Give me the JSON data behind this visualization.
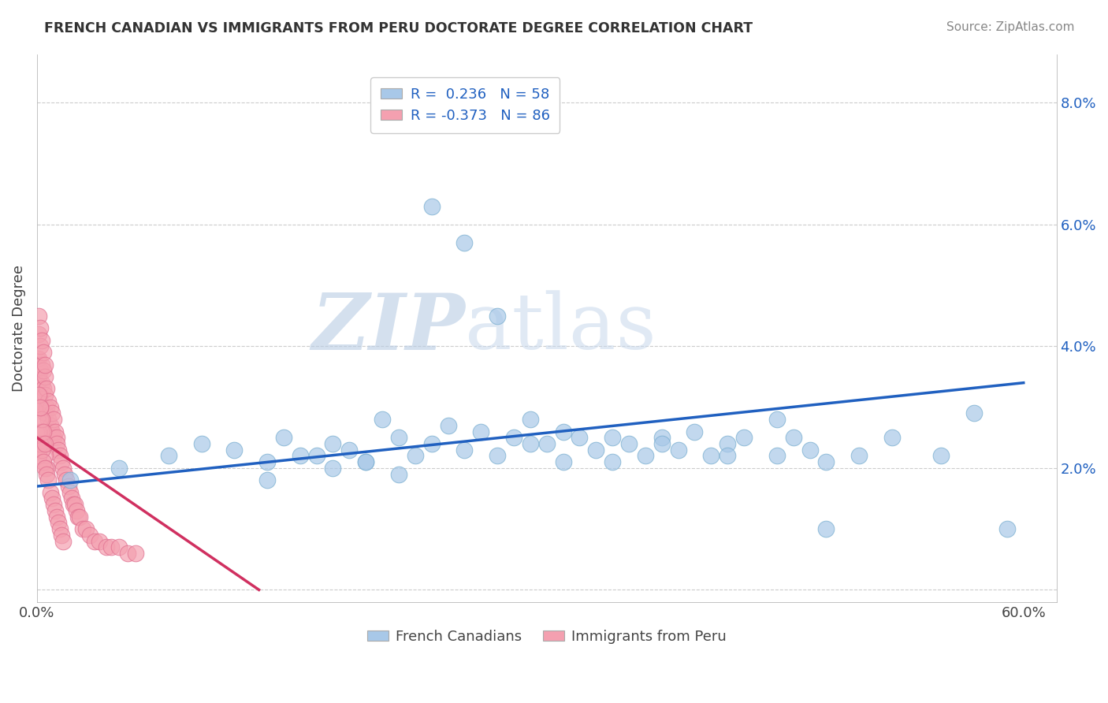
{
  "title": "FRENCH CANADIAN VS IMMIGRANTS FROM PERU DOCTORATE DEGREE CORRELATION CHART",
  "source": "Source: ZipAtlas.com",
  "ylabel": "Doctorate Degree",
  "xlim": [
    0.0,
    0.62
  ],
  "ylim": [
    -0.002,
    0.088
  ],
  "yticks": [
    0.0,
    0.02,
    0.04,
    0.06,
    0.08
  ],
  "ytick_labels": [
    "",
    "2.0%",
    "4.0%",
    "6.0%",
    "8.0%"
  ],
  "xticks": [
    0.0,
    0.1,
    0.2,
    0.3,
    0.4,
    0.5,
    0.6
  ],
  "xtick_labels": [
    "0.0%",
    "",
    "",
    "",
    "",
    "",
    "60.0%"
  ],
  "legend_line1": "R =  0.236   N = 58",
  "legend_line2": "R = -0.373   N = 86",
  "blue_color": "#a8c8e8",
  "pink_color": "#f4a0b0",
  "blue_edge_color": "#7aaed0",
  "pink_edge_color": "#e07090",
  "line_blue_color": "#2060c0",
  "line_pink_color": "#d03060",
  "legend_blue_color": "#a8c8e8",
  "legend_pink_color": "#f4a0b0",
  "legend_text_color": "#2060c0",
  "watermark_text": "ZIPatlas",
  "watermark_color": "#c8d8f0",
  "grid_color": "#cccccc",
  "background_color": "#ffffff",
  "blue_line_x0": 0.0,
  "blue_line_y0": 0.017,
  "blue_line_x1": 0.6,
  "blue_line_y1": 0.034,
  "pink_line_x0": 0.0,
  "pink_line_y0": 0.025,
  "pink_line_x1": 0.135,
  "pink_line_y1": 0.0,
  "blue_scatter_x": [
    0.02,
    0.05,
    0.08,
    0.1,
    0.12,
    0.14,
    0.15,
    0.17,
    0.18,
    0.19,
    0.2,
    0.21,
    0.22,
    0.23,
    0.24,
    0.25,
    0.26,
    0.27,
    0.28,
    0.29,
    0.3,
    0.31,
    0.32,
    0.33,
    0.34,
    0.35,
    0.36,
    0.37,
    0.38,
    0.39,
    0.4,
    0.41,
    0.42,
    0.43,
    0.45,
    0.46,
    0.47,
    0.48,
    0.5,
    0.52,
    0.55,
    0.57,
    0.59,
    0.24,
    0.26,
    0.28,
    0.22,
    0.2,
    0.18,
    0.16,
    0.14,
    0.3,
    0.32,
    0.35,
    0.38,
    0.42,
    0.45,
    0.48
  ],
  "blue_scatter_y": [
    0.018,
    0.02,
    0.022,
    0.024,
    0.023,
    0.021,
    0.025,
    0.022,
    0.024,
    0.023,
    0.021,
    0.028,
    0.025,
    0.022,
    0.024,
    0.027,
    0.023,
    0.026,
    0.022,
    0.025,
    0.028,
    0.024,
    0.026,
    0.025,
    0.023,
    0.021,
    0.024,
    0.022,
    0.025,
    0.023,
    0.026,
    0.022,
    0.024,
    0.025,
    0.022,
    0.025,
    0.023,
    0.01,
    0.022,
    0.025,
    0.022,
    0.029,
    0.01,
    0.063,
    0.057,
    0.045,
    0.019,
    0.021,
    0.02,
    0.022,
    0.018,
    0.024,
    0.021,
    0.025,
    0.024,
    0.022,
    0.028,
    0.021
  ],
  "pink_scatter_x": [
    0.0,
    0.0,
    0.001,
    0.001,
    0.001,
    0.002,
    0.002,
    0.002,
    0.003,
    0.003,
    0.003,
    0.004,
    0.004,
    0.005,
    0.005,
    0.005,
    0.006,
    0.006,
    0.007,
    0.007,
    0.008,
    0.008,
    0.009,
    0.009,
    0.01,
    0.01,
    0.011,
    0.012,
    0.012,
    0.013,
    0.014,
    0.015,
    0.016,
    0.017,
    0.018,
    0.019,
    0.02,
    0.021,
    0.022,
    0.023,
    0.024,
    0.025,
    0.026,
    0.028,
    0.03,
    0.032,
    0.035,
    0.038,
    0.042,
    0.045,
    0.05,
    0.055,
    0.06,
    0.001,
    0.002,
    0.003,
    0.004,
    0.005,
    0.001,
    0.002,
    0.003,
    0.004,
    0.005,
    0.006,
    0.001,
    0.002,
    0.003,
    0.004,
    0.005,
    0.006,
    0.007,
    0.008,
    0.009,
    0.01,
    0.011,
    0.012,
    0.013,
    0.014,
    0.015,
    0.016,
    0.002,
    0.003,
    0.004,
    0.005,
    0.001,
    0.002
  ],
  "pink_scatter_y": [
    0.038,
    0.034,
    0.042,
    0.038,
    0.035,
    0.04,
    0.036,
    0.032,
    0.037,
    0.034,
    0.03,
    0.036,
    0.033,
    0.035,
    0.032,
    0.029,
    0.033,
    0.03,
    0.031,
    0.028,
    0.03,
    0.027,
    0.029,
    0.026,
    0.028,
    0.025,
    0.026,
    0.025,
    0.024,
    0.023,
    0.022,
    0.021,
    0.02,
    0.019,
    0.018,
    0.017,
    0.016,
    0.015,
    0.014,
    0.014,
    0.013,
    0.012,
    0.012,
    0.01,
    0.01,
    0.009,
    0.008,
    0.008,
    0.007,
    0.007,
    0.007,
    0.006,
    0.006,
    0.045,
    0.043,
    0.041,
    0.039,
    0.037,
    0.026,
    0.028,
    0.026,
    0.024,
    0.022,
    0.02,
    0.022,
    0.024,
    0.023,
    0.021,
    0.02,
    0.019,
    0.018,
    0.016,
    0.015,
    0.014,
    0.013,
    0.012,
    0.011,
    0.01,
    0.009,
    0.008,
    0.03,
    0.028,
    0.026,
    0.024,
    0.032,
    0.03
  ]
}
